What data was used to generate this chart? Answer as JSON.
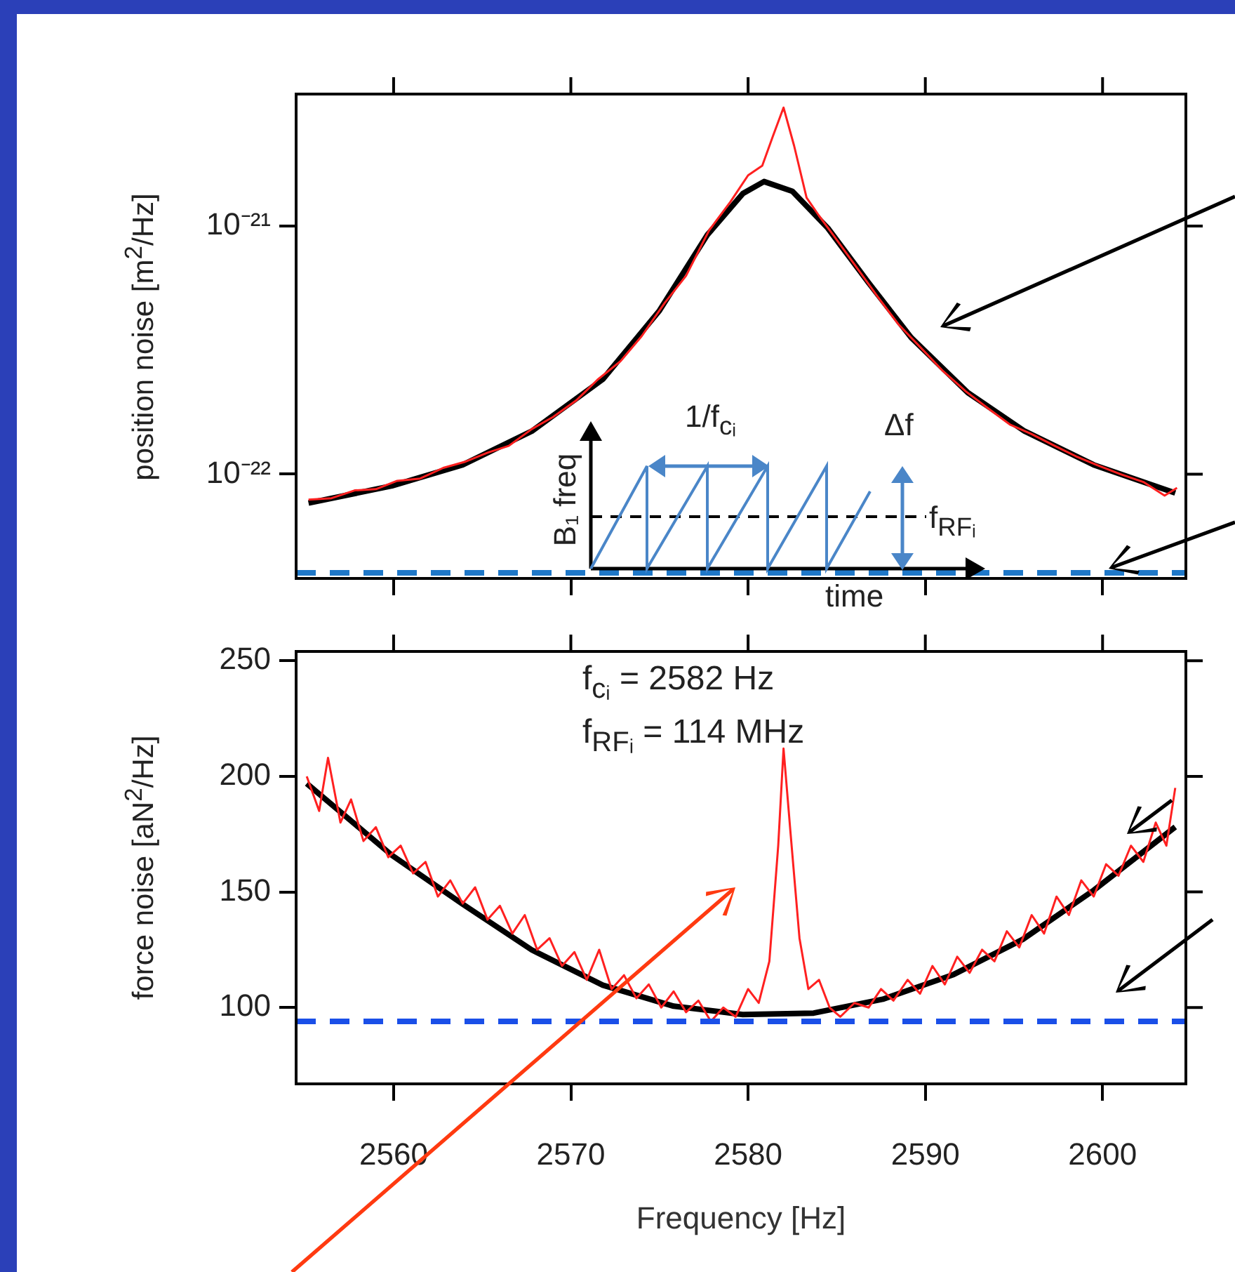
{
  "chart_data": [
    {
      "type": "line",
      "ylabel": "position noise [m$^{2}$/Hz]",
      "xlim": [
        2554.5,
        2604.7
      ],
      "xticks": [
        {
          "value": 2560,
          "label": null
        },
        {
          "value": 2570,
          "label": null
        },
        {
          "value": 2580,
          "label": null
        },
        {
          "value": 2590,
          "label": null
        },
        {
          "value": 2600,
          "label": null
        }
      ],
      "ylim": [
        3.8e-23,
        3.4e-21
      ],
      "yticks": [
        {
          "value": 1e-22,
          "label": "10⁻²²"
        },
        {
          "value": 1e-21,
          "label": "10⁻²¹"
        }
      ],
      "log": "y",
      "tick_labels": "y",
      "legend": false,
      "grid": false,
      "marker": "none",
      "annotations": [
        "1/f$_{cᵢ}$",
        "Δf",
        "B₁ freq",
        "f$_{RFᵢ}$",
        "time"
      ],
      "ref_lines": [
        {
          "axis": "y",
          "value": 4e-23,
          "color": "#1f78c8",
          "line_style": "dashed"
        }
      ],
      "series": [
        {
          "color": "#ff2020",
          "x": [
            2555.2,
            2556.5,
            2557.8,
            2559.0,
            2560.2,
            2561.5,
            2562.8,
            2564.0,
            2565.3,
            2566.5,
            2567.8,
            2569.0,
            2570.3,
            2571.5,
            2572.8,
            2574.0,
            2575.3,
            2576.5,
            2577.8,
            2579.0,
            2580.0,
            2580.8,
            2581.4,
            2582.0,
            2582.6,
            2583.3,
            2584.0,
            2584.8,
            2586.0,
            2587.3,
            2588.5,
            2589.8,
            2591.0,
            2592.3,
            2593.5,
            2594.8,
            2596.0,
            2597.3,
            2598.5,
            2599.8,
            2601.0,
            2602.3,
            2603.5,
            2604.2
          ],
          "values": [
            7.9e-23,
            8e-23,
            8.6e-23,
            8.7e-23,
            9.4e-23,
            9.6e-23,
            1.06e-22,
            1.12e-22,
            1.22e-22,
            1.3e-22,
            1.52e-22,
            1.7e-22,
            1.98e-22,
            2.4e-22,
            2.85e-22,
            3.6e-22,
            4.9e-22,
            6.3e-22,
            9.6e-22,
            1.25e-21,
            1.6e-21,
            1.75e-21,
            2.3e-21,
            3e-21,
            2.1e-21,
            1.3e-21,
            1.1e-21,
            9.2e-22,
            7e-22,
            5.2e-22,
            4e-22,
            3.2e-22,
            2.6e-22,
            2.15e-22,
            1.85e-22,
            1.58e-22,
            1.45e-22,
            1.3e-22,
            1.18e-22,
            1.08e-22,
            1e-22,
            9.3e-23,
            8.2e-23,
            8.8e-23
          ]
        },
        {
          "color": "#000000",
          "x": [
            2555.2,
            2559.9,
            2563.9,
            2567.8,
            2571.8,
            2575.0,
            2577.7,
            2579.7,
            2580.9,
            2582.5,
            2584.5,
            2586.8,
            2589.2,
            2592.4,
            2595.6,
            2599.5,
            2604.1
          ],
          "values": [
            7.65e-23,
            8.97e-23,
            1.09e-22,
            1.49e-22,
            2.41e-22,
            4.56e-22,
            9.2e-22,
            1.35e-21,
            1.51e-21,
            1.38e-21,
            9.8e-22,
            5.9e-22,
            3.55e-22,
            2.13e-22,
            1.49e-22,
            1.09e-22,
            8.4e-23
          ]
        }
      ]
    },
    {
      "type": "line",
      "ylabel": "force noise [aN$^{2}$/Hz]",
      "xlabel": "Frequency [Hz]",
      "xlim": [
        2554.5,
        2604.7
      ],
      "xticks": [
        2560,
        2570,
        2580,
        2590,
        2600
      ],
      "ylim": [
        67,
        254
      ],
      "yticks": [
        100,
        150,
        200,
        250
      ],
      "legend": false,
      "grid": false,
      "marker": "none",
      "annotations": [
        "f$_{cᵢ}$ = 2582 Hz",
        "f$_{RFᵢ}$ = 114 MHz"
      ],
      "ref_lines": [
        {
          "axis": "y",
          "value": 94,
          "color": "#1a4fe8",
          "line_style": "dashed"
        }
      ],
      "series": [
        {
          "color": "#ff2020",
          "x": [
            2555.1,
            2555.8,
            2556.3,
            2557.0,
            2557.6,
            2558.3,
            2559.0,
            2559.7,
            2560.4,
            2561.1,
            2561.8,
            2562.5,
            2563.2,
            2563.9,
            2564.6,
            2565.3,
            2566.0,
            2566.7,
            2567.4,
            2568.1,
            2568.8,
            2569.5,
            2570.2,
            2570.9,
            2571.6,
            2572.3,
            2573.0,
            2573.7,
            2574.4,
            2575.1,
            2575.8,
            2576.5,
            2577.2,
            2577.9,
            2578.6,
            2579.3,
            2580.0,
            2580.6,
            2581.2,
            2581.7,
            2582.0,
            2582.4,
            2582.9,
            2583.4,
            2584.0,
            2584.6,
            2585.2,
            2586.0,
            2586.8,
            2587.5,
            2588.2,
            2589.0,
            2589.7,
            2590.4,
            2591.1,
            2591.8,
            2592.5,
            2593.2,
            2593.9,
            2594.6,
            2595.3,
            2596.0,
            2596.7,
            2597.4,
            2598.1,
            2598.8,
            2599.5,
            2600.2,
            2600.9,
            2601.6,
            2602.3,
            2603.0,
            2603.6,
            2604.1
          ],
          "values": [
            200,
            185,
            208,
            180,
            190,
            172,
            178,
            165,
            170,
            158,
            163,
            148,
            155,
            145,
            152,
            138,
            144,
            132,
            140,
            125,
            130,
            118,
            124,
            112,
            125,
            108,
            114,
            104,
            110,
            100,
            107,
            98,
            103,
            94,
            100,
            96,
            108,
            102,
            120,
            170,
            212,
            175,
            130,
            108,
            112,
            100,
            96,
            102,
            100,
            108,
            103,
            112,
            106,
            118,
            110,
            122,
            115,
            125,
            120,
            133,
            126,
            140,
            132,
            148,
            140,
            155,
            148,
            162,
            157,
            170,
            163,
            180,
            170,
            195
          ]
        },
        {
          "color": "#000000",
          "x": [
            2555.1,
            2559.9,
            2563.9,
            2567.8,
            2571.8,
            2575.8,
            2579.7,
            2583.7,
            2587.6,
            2591.6,
            2595.5,
            2599.5,
            2604.1
          ],
          "values": [
            196.9,
            165.9,
            144.7,
            124.9,
            109.7,
            100.6,
            97.0,
            97.6,
            103.6,
            114.3,
            129.5,
            150.7,
            178.1
          ]
        }
      ]
    }
  ]
}
